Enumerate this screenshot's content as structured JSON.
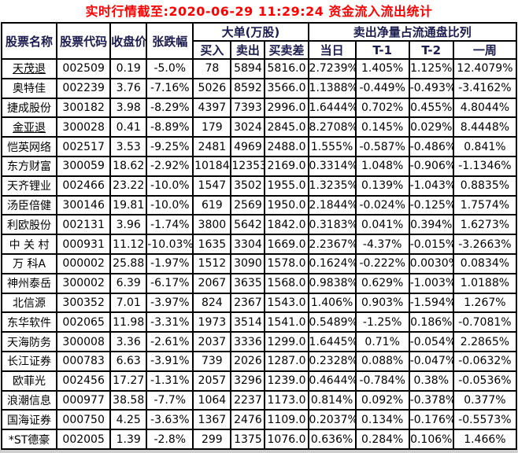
{
  "title": "实时行情截至:2020-06-29 11:29:24 资金流入流出统计",
  "colors": {
    "title_text": "#ff0000",
    "header_text": "#1b1b4d",
    "stock_link": "#4a87a8",
    "value_text": "#000000",
    "grid_line": "#000000",
    "background": "#ffffff",
    "bottom_strip": "#cfcfcf"
  },
  "table": {
    "headers": {
      "stock_name": "股票名称",
      "stock_code": "股票代码",
      "close_price": "收盘价",
      "change_pct": "张跌幅",
      "big_orders_group": "大单(万股)",
      "buy": "买入",
      "sell": "卖出",
      "buy_sell_diff": "买卖差",
      "net_sell_group": "卖出净量占流通盘比列",
      "day": "当日",
      "t1": "T-1",
      "t2": "T-2",
      "week": "一周"
    },
    "rows": [
      {
        "name": "天茂退",
        "code": "002509",
        "close": "0.19",
        "change": "-5.0%",
        "buy": "78",
        "sell": "5894",
        "diff": "5816.0",
        "day": "2.7239%",
        "t1": "1.405%",
        "t2": "1.125%",
        "week": "12.4079%",
        "underline": true
      },
      {
        "name": "奥特佳",
        "code": "002239",
        "close": "3.76",
        "change": "-7.16%",
        "buy": "5026",
        "sell": "8592",
        "diff": "3566.0",
        "day": "1.1388%",
        "t1": "-0.449%",
        "t2": "-0.493%",
        "week": "-3.4162%",
        "underline": false
      },
      {
        "name": "捷成股份",
        "code": "300182",
        "close": "3.98",
        "change": "-8.29%",
        "buy": "4397",
        "sell": "7393",
        "diff": "2996.0",
        "day": "1.6444%",
        "t1": "0.702%",
        "t2": "0.455%",
        "week": "4.8044%",
        "underline": false
      },
      {
        "name": "金亚退",
        "code": "300028",
        "close": "0.41",
        "change": "-8.89%",
        "buy": "179",
        "sell": "3024",
        "diff": "2845.0",
        "day": "8.2708%",
        "t1": "0.145%",
        "t2": "0.029%",
        "week": "8.4448%",
        "underline": true
      },
      {
        "name": "恺英网络",
        "code": "002517",
        "close": "3.53",
        "change": "-9.25%",
        "buy": "2481",
        "sell": "4969",
        "diff": "2488.0",
        "day": "1.555%",
        "t1": "-0.587%",
        "t2": "-0.486%",
        "week": "0.841%",
        "underline": false
      },
      {
        "name": "东方财富",
        "code": "300059",
        "close": "18.62",
        "change": "-2.92%",
        "buy": "10184",
        "sell": "12353",
        "diff": "2169.0",
        "day": "0.3314%",
        "t1": "1.048%",
        "t2": "-0.906%",
        "week": "-1.1346%",
        "underline": false
      },
      {
        "name": "天齐锂业",
        "code": "002466",
        "close": "23.22",
        "change": "-10.0%",
        "buy": "1547",
        "sell": "3502",
        "diff": "1955.0",
        "day": "1.3235%",
        "t1": "0.139%",
        "t2": "-1.043%",
        "week": "0.8835%",
        "underline": false
      },
      {
        "name": "汤臣倍健",
        "code": "300146",
        "close": "19.81",
        "change": "-10.0%",
        "buy": "619",
        "sell": "2569",
        "diff": "1950.0",
        "day": "2.1844%",
        "t1": "-0.024%",
        "t2": "-0.125%",
        "week": "1.7574%",
        "underline": false
      },
      {
        "name": "利欧股份",
        "code": "002131",
        "close": "3.96",
        "change": "-1.74%",
        "buy": "3800",
        "sell": "5642",
        "diff": "1842.0",
        "day": "0.3183%",
        "t1": "0.041%",
        "t2": "0.394%",
        "week": "1.6273%",
        "underline": false
      },
      {
        "name": "中 关 村",
        "code": "000931",
        "close": "11.12",
        "change": "-10.03%",
        "buy": "1635",
        "sell": "3304",
        "diff": "1669.0",
        "day": "2.2367%",
        "t1": "-4.37%",
        "t2": "-0.015%",
        "week": "-3.2663%",
        "underline": false
      },
      {
        "name": "万 科A",
        "code": "000002",
        "close": "25.88",
        "change": "-1.97%",
        "buy": "1512",
        "sell": "3090",
        "diff": "1578.0",
        "day": "0.1624%",
        "t1": "-0.222%",
        "t2": "0.0030%",
        "week": "0.0834%",
        "underline": false
      },
      {
        "name": "神州泰岳",
        "code": "300002",
        "close": "6.39",
        "change": "-6.17%",
        "buy": "2067",
        "sell": "3635",
        "diff": "1568.0",
        "day": "0.9838%",
        "t1": "0.629%",
        "t2": "-1.003%",
        "week": "1.0188%",
        "underline": false
      },
      {
        "name": "北信源",
        "code": "300352",
        "close": "7.01",
        "change": "-3.97%",
        "buy": "824",
        "sell": "2367",
        "diff": "1543.0",
        "day": "1.406%",
        "t1": "0.903%",
        "t2": "-1.594%",
        "week": "1.267%",
        "underline": false
      },
      {
        "name": "东华软件",
        "code": "002065",
        "close": "11.98",
        "change": "-3.31%",
        "buy": "1973",
        "sell": "3514",
        "diff": "1541.0",
        "day": "0.5489%",
        "t1": "-1.25%",
        "t2": "0.186%",
        "week": "-0.7081%",
        "underline": false
      },
      {
        "name": "天海防务",
        "code": "300008",
        "close": "3.36",
        "change": "-2.61%",
        "buy": "2037",
        "sell": "3336",
        "diff": "1299.0",
        "day": "1.6445%",
        "t1": "0.71%",
        "t2": "-0.054%",
        "week": "2.2865%",
        "underline": false
      },
      {
        "name": "长江证券",
        "code": "000783",
        "close": "6.63",
        "change": "-3.91%",
        "buy": "739",
        "sell": "2026",
        "diff": "1287.0",
        "day": "0.2328%",
        "t1": "0.088%",
        "t2": "-0.047%",
        "week": "-0.0632%",
        "underline": false
      },
      {
        "name": "欧菲光",
        "code": "002456",
        "close": "17.27",
        "change": "-1.31%",
        "buy": "2057",
        "sell": "3296",
        "diff": "1239.0",
        "day": "0.4644%",
        "t1": "-0.784%",
        "t2": "0.38%",
        "week": "-0.0536%",
        "underline": false
      },
      {
        "name": "浪潮信息",
        "code": "000977",
        "close": "38.58",
        "change": "-7.7%",
        "buy": "1064",
        "sell": "2237",
        "diff": "1173.0",
        "day": "0.814%",
        "t1": "0.092%",
        "t2": "-0.378%",
        "week": "0.377%",
        "underline": false
      },
      {
        "name": "国海证券",
        "code": "000750",
        "close": "4.25",
        "change": "-3.63%",
        "buy": "1367",
        "sell": "2476",
        "diff": "1109.0",
        "day": "0.2037%",
        "t1": "0.134%",
        "t2": "-0.176%",
        "week": "-0.5573%",
        "underline": false
      },
      {
        "name": "*ST德豪",
        "code": "002005",
        "close": "1.39",
        "change": "-2.8%",
        "buy": "299",
        "sell": "1375",
        "diff": "1076.0",
        "day": "0.636%",
        "t1": "0.284%",
        "t2": "0.106%",
        "week": "1.466%",
        "underline": false
      }
    ]
  }
}
